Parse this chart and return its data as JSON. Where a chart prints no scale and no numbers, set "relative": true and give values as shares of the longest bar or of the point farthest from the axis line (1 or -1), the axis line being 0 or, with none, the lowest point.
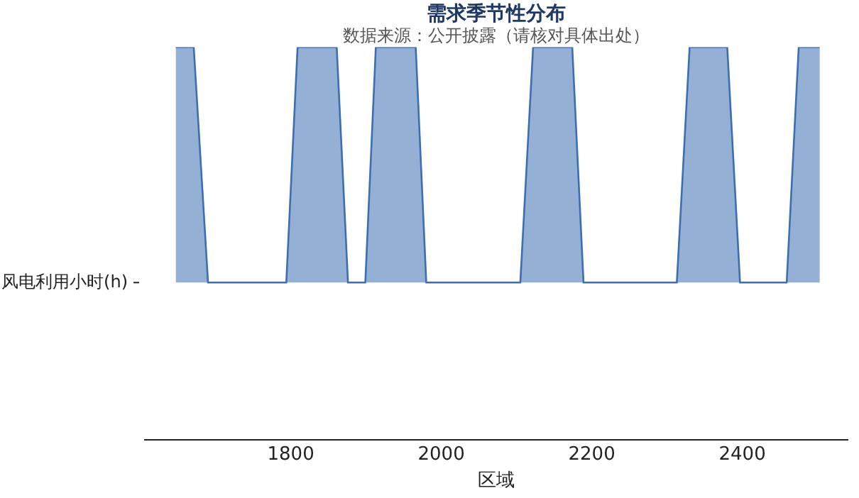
{
  "chart_data": {
    "type": "area",
    "title": "需求季节性分布",
    "subtitle": "数据来源：公开披露（请核对具体出处）",
    "xlabel": "区域",
    "ylabel": "风电利用小时(h)",
    "relative": true,
    "x": [
      1647,
      1671,
      1690,
      1794,
      1809,
      1861,
      1876,
      1899,
      1913,
      1966,
      1980,
      2105,
      2122,
      2174,
      2189,
      2313,
      2330,
      2380,
      2397,
      2459,
      2475,
      2503
    ],
    "series": [
      {
        "color": "#3d6fb0",
        "values": [
          1,
          1,
          0.4,
          0.4,
          1,
          1,
          0.4,
          0.4,
          1,
          1,
          0.4,
          0.4,
          1,
          1,
          0.4,
          0.4,
          1,
          1,
          0.4,
          0.4,
          1,
          1
        ]
      }
    ],
    "xlim": [
      1606,
      2540
    ],
    "xticks": [
      1800,
      2000,
      2200,
      2400
    ],
    "grid": false,
    "legend": false
  }
}
